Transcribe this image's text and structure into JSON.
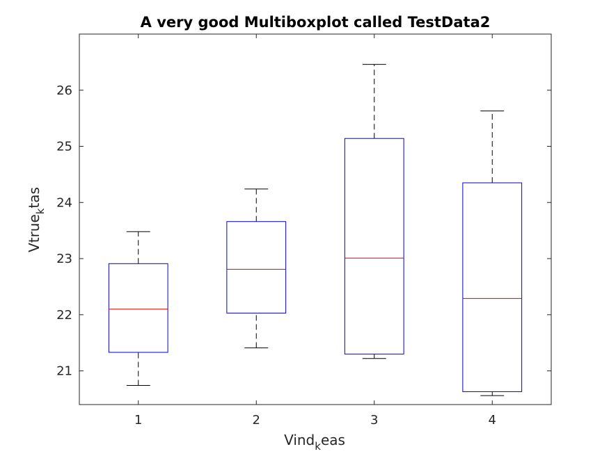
{
  "chart_data": {
    "type": "boxplot",
    "title": "A very good Multiboxplot called TestData2",
    "xlabel": {
      "base": "Vind",
      "sub": "k",
      "rest": "eas"
    },
    "ylabel": {
      "base": "Vtrue",
      "sub": "k",
      "rest": "tas"
    },
    "categories": [
      "1",
      "2",
      "3",
      "4"
    ],
    "xlim": [
      0.5,
      4.5
    ],
    "ylim": [
      20.4,
      27.0
    ],
    "yticks": [
      21,
      22,
      23,
      24,
      25,
      26
    ],
    "grid": false,
    "colors": {
      "box": "#0000cc",
      "median": "#dd0000",
      "whisker": "#000000",
      "axes": "#262626"
    },
    "boxes": [
      {
        "category": "1",
        "lower_whisker": 20.74,
        "q1": 21.33,
        "median": 22.1,
        "q3": 22.91,
        "upper_whisker": 23.48
      },
      {
        "category": "2",
        "lower_whisker": 21.41,
        "q1": 22.03,
        "median": 22.81,
        "q3": 23.66,
        "upper_whisker": 24.24
      },
      {
        "category": "3",
        "lower_whisker": 21.22,
        "q1": 21.3,
        "median": 23.01,
        "q3": 25.14,
        "upper_whisker": 26.46
      },
      {
        "category": "4",
        "lower_whisker": 20.56,
        "q1": 20.63,
        "median": 22.29,
        "q3": 24.35,
        "upper_whisker": 25.63
      }
    ]
  }
}
